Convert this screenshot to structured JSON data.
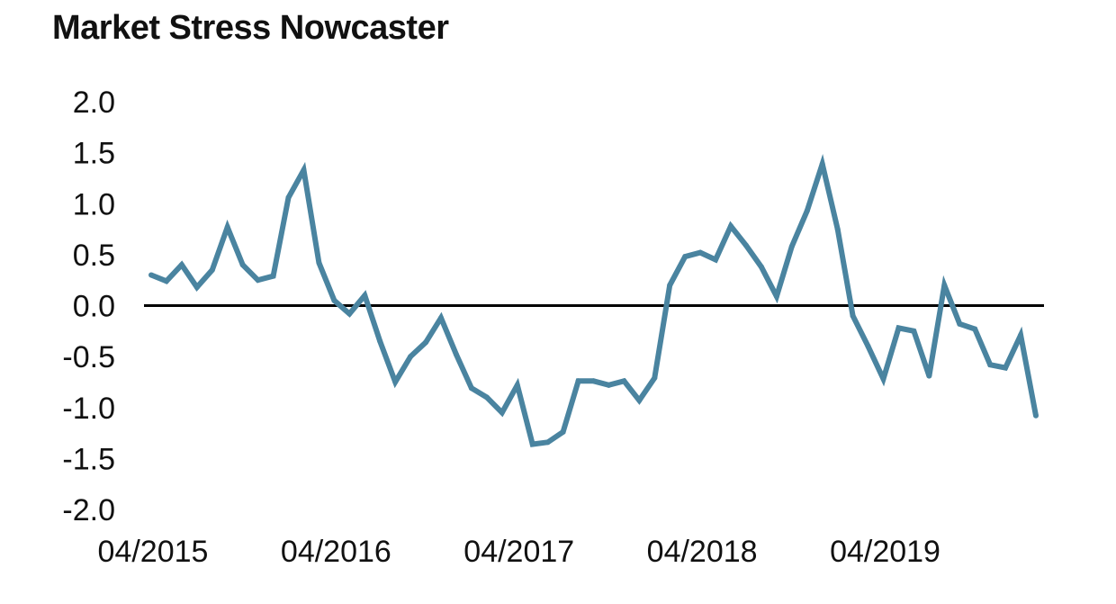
{
  "chart_data": {
    "type": "line",
    "title": "Market Stress Nowcaster",
    "xlabel": "",
    "ylabel": "",
    "ylim": [
      -2.0,
      2.0
    ],
    "yticks": [
      "2.0",
      "1.5",
      "1.0",
      "0.5",
      "0.0",
      "-0.5",
      "-1.0",
      "-1.5",
      "-2.0"
    ],
    "xticks": [
      "04/2015",
      "04/2016",
      "04/2017",
      "04/2018",
      "04/2019"
    ],
    "x_start": "04/2015",
    "zero_line": true,
    "grid": false,
    "legend": "none",
    "line_color": "#4a84a0",
    "series": [
      {
        "values": [
          0.3,
          0.24,
          0.4,
          0.18,
          0.35,
          0.77,
          0.4,
          0.25,
          0.29,
          1.06,
          1.33,
          0.42,
          0.05,
          -0.08,
          0.1,
          -0.35,
          -0.75,
          -0.5,
          -0.36,
          -0.12,
          -0.48,
          -0.81,
          -0.9,
          -1.05,
          -0.78,
          -1.36,
          -1.34,
          -1.24,
          -0.74,
          -0.74,
          -0.78,
          -0.74,
          -0.93,
          -0.71,
          0.2,
          0.48,
          0.52,
          0.45,
          0.78,
          0.59,
          0.38,
          0.09,
          0.58,
          0.93,
          1.39,
          0.75,
          -0.1,
          -0.4,
          -0.72,
          -0.22,
          -0.25,
          -0.69,
          0.2,
          -0.18,
          -0.23,
          -0.58,
          -0.61,
          -0.29,
          -1.08
        ]
      }
    ]
  }
}
